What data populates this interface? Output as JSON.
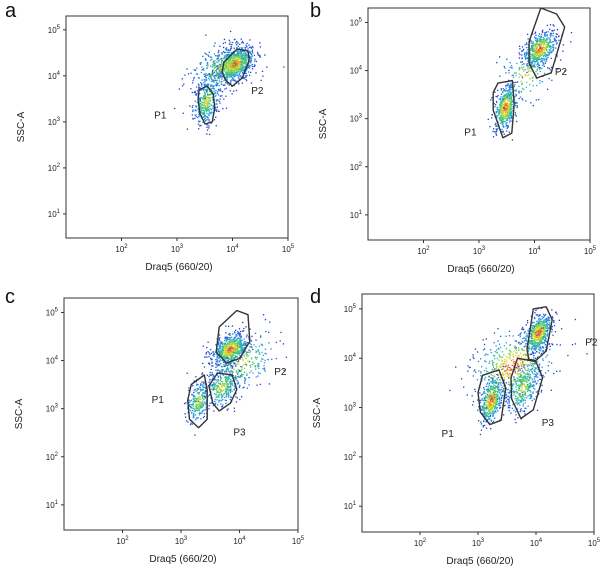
{
  "chart_data": [
    {
      "panel": "a",
      "type": "scatter",
      "xlabel": "Draq5 (660/20)",
      "ylabel": "SSC-A",
      "x_scale": "log",
      "y_scale": "log",
      "xlim": [
        10,
        100000
      ],
      "ylim": [
        3,
        200000
      ],
      "x_ticks": [
        "10^2",
        "10^3",
        "10^4",
        "10^5"
      ],
      "y_ticks": [
        "10^1",
        "10^2",
        "10^3",
        "10^4",
        "10^5"
      ],
      "gates": [
        {
          "name": "P1",
          "label_at": [
            500,
            1200
          ],
          "polygon": [
            [
              2500,
              5000
            ],
            [
              3500,
              6000
            ],
            [
              4500,
              4000
            ],
            [
              4800,
              2000
            ],
            [
              4300,
              1000
            ],
            [
              3200,
              900
            ],
            [
              2600,
              1500
            ],
            [
              2400,
              3000
            ]
          ]
        },
        {
          "name": "P2",
          "label_at": [
            28000,
            4000
          ],
          "polygon": [
            [
              7000,
              20000
            ],
            [
              12000,
              38000
            ],
            [
              19000,
              35000
            ],
            [
              20000,
              22000
            ],
            [
              15000,
              9000
            ],
            [
              10000,
              6000
            ],
            [
              7500,
              8000
            ],
            [
              6500,
              12000
            ]
          ]
        }
      ],
      "populations": [
        {
          "center": [
            3400,
            2800
          ],
          "spread": [
            0.12,
            0.25
          ],
          "n": 380
        },
        {
          "center": [
            11000,
            18000
          ],
          "spread": [
            0.17,
            0.17
          ],
          "n": 800
        },
        {
          "center": [
            7000,
            15000
          ],
          "spread": [
            0.3,
            0.25
          ],
          "n": 350
        }
      ]
    },
    {
      "panel": "b",
      "type": "scatter",
      "xlabel": "Draq5 (660/20)",
      "ylabel": "SSC-A",
      "x_scale": "log",
      "y_scale": "log",
      "xlim": [
        10,
        100000
      ],
      "ylim": [
        3,
        200000
      ],
      "x_ticks": [
        "10^2",
        "10^3",
        "10^4",
        "10^5"
      ],
      "y_ticks": [
        "10^1",
        "10^2",
        "10^3",
        "10^4",
        "10^5"
      ],
      "gates": [
        {
          "name": "P1",
          "label_at": [
            700,
            450
          ],
          "polygon": [
            [
              2200,
              5500
            ],
            [
              4000,
              6200
            ],
            [
              4300,
              2000
            ],
            [
              3900,
              500
            ],
            [
              2700,
              400
            ],
            [
              1800,
              1500
            ],
            [
              1800,
              3500
            ]
          ]
        },
        {
          "name": "P2",
          "label_at": [
            30000,
            8000
          ],
          "polygon": [
            [
              8000,
              40000
            ],
            [
              13000,
              200000
            ],
            [
              25000,
              150000
            ],
            [
              35000,
              80000
            ],
            [
              20000,
              9000
            ],
            [
              11000,
              7000
            ],
            [
              8000,
              14000
            ]
          ]
        }
      ],
      "populations": [
        {
          "center": [
            3000,
            1700
          ],
          "spread": [
            0.1,
            0.22
          ],
          "n": 500
        },
        {
          "center": [
            12500,
            28000
          ],
          "spread": [
            0.15,
            0.16
          ],
          "n": 550
        },
        {
          "center": [
            7000,
            8000
          ],
          "spread": [
            0.25,
            0.3
          ],
          "n": 150
        }
      ]
    },
    {
      "panel": "c",
      "type": "scatter",
      "xlabel": "Draq5 (660/20)",
      "ylabel": "SSC-A",
      "x_scale": "log",
      "y_scale": "log",
      "xlim": [
        10,
        100000
      ],
      "ylim": [
        3,
        200000
      ],
      "x_ticks": [
        "10^2",
        "10^3",
        "10^4",
        "10^5"
      ],
      "y_ticks": [
        "10^1",
        "10^2",
        "10^3",
        "10^4",
        "10^5"
      ],
      "gates": [
        {
          "name": "P1",
          "label_at": [
            400,
            1300
          ],
          "polygon": [
            [
              1500,
              3200
            ],
            [
              2500,
              5000
            ],
            [
              2800,
              2500
            ],
            [
              2800,
              600
            ],
            [
              2000,
              400
            ],
            [
              1400,
              600
            ],
            [
              1300,
              1500
            ]
          ]
        },
        {
          "name": "P2",
          "label_at": [
            50000,
            5000
          ],
          "polygon": [
            [
              4000,
              15000
            ],
            [
              4500,
              50000
            ],
            [
              9000,
              110000
            ],
            [
              14000,
              90000
            ],
            [
              15000,
              25000
            ],
            [
              10000,
              11000
            ],
            [
              6000,
              9000
            ]
          ]
        },
        {
          "name": "P3",
          "label_at": [
            10000,
            280
          ],
          "polygon": [
            [
              3000,
              3000
            ],
            [
              4200,
              5500
            ],
            [
              7500,
              5000
            ],
            [
              9000,
              2500
            ],
            [
              7000,
              1300
            ],
            [
              4500,
              900
            ],
            [
              3500,
              1300
            ]
          ]
        }
      ],
      "populations": [
        {
          "center": [
            7000,
            17000
          ],
          "spread": [
            0.15,
            0.15
          ],
          "n": 650
        },
        {
          "center": [
            5000,
            2800
          ],
          "spread": [
            0.17,
            0.2
          ],
          "n": 350
        },
        {
          "center": [
            2000,
            1400
          ],
          "spread": [
            0.1,
            0.22
          ],
          "n": 250
        },
        {
          "center": [
            11000,
            9000
          ],
          "spread": [
            0.3,
            0.3
          ],
          "n": 250
        }
      ]
    },
    {
      "panel": "d",
      "type": "scatter",
      "xlabel": "Draq5 (660/20)",
      "ylabel": "SSC-A",
      "x_scale": "log",
      "y_scale": "log",
      "xlim": [
        10,
        100000
      ],
      "ylim": [
        3,
        200000
      ],
      "x_ticks": [
        "10^2",
        "10^3",
        "10^4",
        "10^5"
      ],
      "y_ticks": [
        "10^1",
        "10^2",
        "10^3",
        "10^4",
        "10^5"
      ],
      "gates": [
        {
          "name": "P1",
          "label_at": [
            300,
            250
          ],
          "polygon": [
            [
              1200,
              4500
            ],
            [
              2300,
              5800
            ],
            [
              3000,
              2500
            ],
            [
              2500,
              550
            ],
            [
              1600,
              450
            ],
            [
              1100,
              800
            ],
            [
              1000,
              2000
            ]
          ]
        },
        {
          "name": "P2",
          "label_at": [
            90000,
            18000
          ],
          "polygon": [
            [
              7000,
              15000
            ],
            [
              9000,
              100000
            ],
            [
              15000,
              110000
            ],
            [
              19000,
              60000
            ],
            [
              15000,
              14000
            ],
            [
              10000,
              9000
            ],
            [
              7500,
              9500
            ]
          ]
        },
        {
          "name": "P3",
          "label_at": [
            16000,
            420
          ],
          "polygon": [
            [
              3700,
              4000
            ],
            [
              4800,
              10000
            ],
            [
              10000,
              8500
            ],
            [
              13000,
              4000
            ],
            [
              9000,
              900
            ],
            [
              5500,
              600
            ],
            [
              3800,
              1500
            ]
          ]
        }
      ],
      "populations": [
        {
          "center": [
            1700,
            1400
          ],
          "spread": [
            0.1,
            0.22
          ],
          "n": 500
        },
        {
          "center": [
            11000,
            32000
          ],
          "spread": [
            0.12,
            0.18
          ],
          "n": 550
        },
        {
          "center": [
            6000,
            2500
          ],
          "spread": [
            0.15,
            0.25
          ],
          "n": 350
        },
        {
          "center": [
            4000,
            7000
          ],
          "spread": [
            0.35,
            0.35
          ],
          "n": 500
        }
      ]
    }
  ]
}
